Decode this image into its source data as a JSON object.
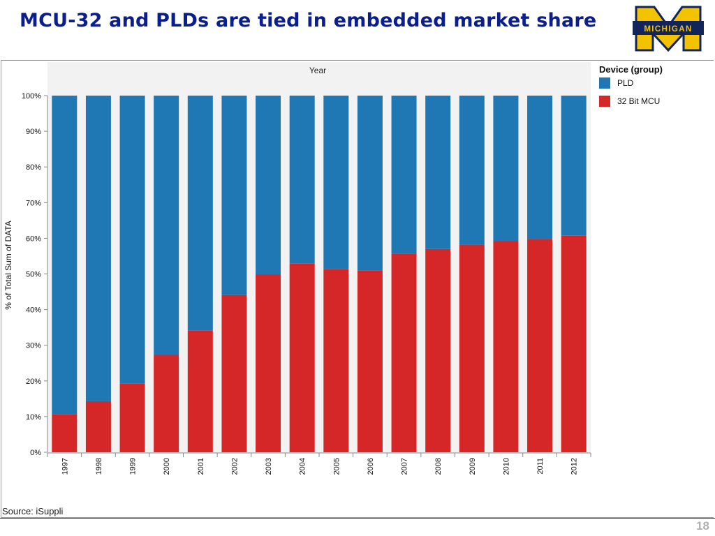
{
  "slide": {
    "title": "MCU-32  and PLDs are tied in embedded market share",
    "logo_text": "MICHIGAN",
    "source": "Source: iSuppli",
    "page_number": "18"
  },
  "colors": {
    "pld": "#1f77b4",
    "mcu": "#d62728",
    "title": "#0b1f8c",
    "logo_gold": "#f4c300",
    "logo_navy": "#12245a"
  },
  "chart_data": {
    "type": "bar",
    "stacked": true,
    "normalized": true,
    "title": "Year",
    "xlabel": "Year",
    "ylabel": "% of Total Sum of DATA",
    "ylim": [
      0,
      100
    ],
    "yticks": [
      "0%",
      "10%",
      "20%",
      "30%",
      "40%",
      "50%",
      "60%",
      "70%",
      "80%",
      "90%",
      "100%"
    ],
    "grid": false,
    "legend": {
      "title": "Device (group)",
      "position": "right"
    },
    "categories": [
      "1997",
      "1998",
      "1999",
      "2000",
      "2001",
      "2002",
      "2003",
      "2004",
      "2005",
      "2006",
      "2007",
      "2008",
      "2009",
      "2010",
      "2011",
      "2012"
    ],
    "series": [
      {
        "name": "PLD",
        "color": "#1f77b4",
        "values": [
          89.3,
          85.7,
          80.8,
          72.7,
          65.8,
          55.9,
          50.1,
          47.1,
          48.7,
          49.1,
          44.3,
          43.0,
          41.8,
          40.8,
          40.2,
          39.3
        ]
      },
      {
        "name": "32 Bit MCU",
        "color": "#d62728",
        "values": [
          10.7,
          14.3,
          19.2,
          27.3,
          34.2,
          44.1,
          49.9,
          52.9,
          51.3,
          50.9,
          55.7,
          57.0,
          58.2,
          59.2,
          59.8,
          60.7
        ]
      }
    ]
  }
}
